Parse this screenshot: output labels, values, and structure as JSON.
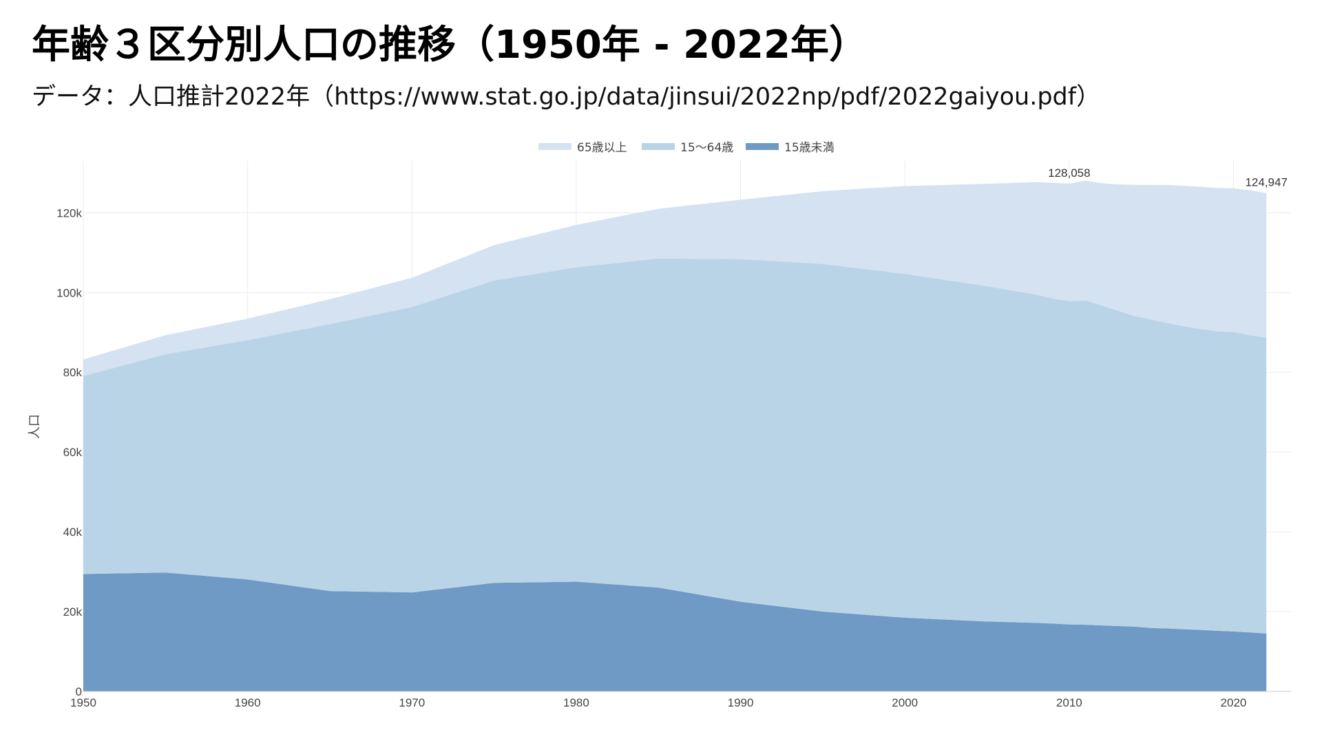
{
  "title": "年齢３区分別人口の推移（1950年 - 2022年）",
  "subtitle": "データ：人口推計2022年（https://www.stat.go.jp/data/jinsui/2022np/pdf/2022gaiyou.pdf）",
  "chart_data": {
    "type": "area",
    "stacked": true,
    "title": "",
    "xlabel": "",
    "ylabel": "人口",
    "xlim": [
      1950,
      2023.5
    ],
    "ylim": [
      0,
      133000
    ],
    "x_ticks": [
      1950,
      1960,
      1970,
      1980,
      1990,
      2000,
      2010,
      2020
    ],
    "y_ticks": [
      {
        "value": 0,
        "label": "0"
      },
      {
        "value": 20000,
        "label": "20k"
      },
      {
        "value": 40000,
        "label": "40k"
      },
      {
        "value": 60000,
        "label": "60k"
      },
      {
        "value": 80000,
        "label": "80k"
      },
      {
        "value": 100000,
        "label": "100k"
      },
      {
        "value": 120000,
        "label": "120k"
      }
    ],
    "grid": true,
    "legend_position": "top-center",
    "x": [
      1950,
      1955,
      1960,
      1965,
      1970,
      1975,
      1980,
      1985,
      1990,
      1995,
      2000,
      2005,
      2008,
      2009,
      2010,
      2011,
      2012,
      2013,
      2014,
      2015,
      2016,
      2017,
      2018,
      2019,
      2020,
      2021,
      2022
    ],
    "series": [
      {
        "name": "15歳未満",
        "color": "#6f9ac6",
        "values": [
          29430,
          29798,
          28067,
          25166,
          24823,
          27221,
          27507,
          26033,
          22486,
          20014,
          18472,
          17521,
          17176,
          17011,
          16803,
          16705,
          16547,
          16390,
          16233,
          15887,
          15780,
          15592,
          15415,
          15210,
          15032,
          14784,
          14503
        ]
      },
      {
        "name": "15〜64歳",
        "color": "#b9d4e6",
        "values": [
          49658,
          54730,
          60002,
          66928,
          71566,
          75807,
          78835,
          82506,
          85904,
          87165,
          86220,
          84092,
          82300,
          81493,
          81032,
          81342,
          80173,
          79010,
          77850,
          77354,
          76562,
          75962,
          75451,
          75072,
          75088,
          74504,
          74208
        ]
      },
      {
        "name": "65歳以上",
        "color": "#d4e2f1",
        "values": [
          4155,
          4786,
          5398,
          6236,
          7331,
          8865,
          10647,
          12468,
          14895,
          18261,
          22005,
          25672,
          28216,
          29005,
          29484,
          30011,
          30693,
          31736,
          32914,
          33769,
          34632,
          35211,
          35660,
          35979,
          36027,
          36371,
          36236
        ]
      }
    ],
    "annotations": [
      {
        "x": 2010,
        "text": "128,058"
      },
      {
        "x": 2022,
        "text": "124,947"
      }
    ]
  }
}
